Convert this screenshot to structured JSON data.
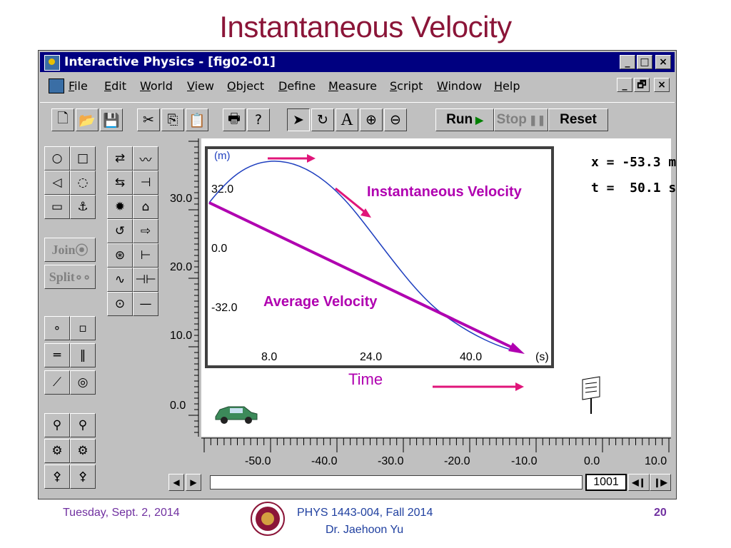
{
  "slide": {
    "title": "Instantaneous Velocity",
    "footer_date": "Tuesday, Sept. 2, 2014",
    "footer_course": "PHYS 1443-004, Fall 2014",
    "footer_instructor": "Dr. Jaehoon Yu",
    "page_number": "20",
    "title_color": "#8b1538"
  },
  "window": {
    "title": "Interactive Physics - [fig02-01]",
    "title_bar_color": "#000080",
    "controls": [
      "_",
      "□",
      "×"
    ],
    "doc_controls": [
      "_",
      "🗗",
      "×"
    ]
  },
  "menu": {
    "items": [
      {
        "label": "File",
        "u": "F",
        "rest": "ile"
      },
      {
        "label": "Edit",
        "u": "E",
        "rest": "dit"
      },
      {
        "label": "World",
        "u": "W",
        "rest": "orld"
      },
      {
        "label": "View",
        "u": "V",
        "rest": "iew"
      },
      {
        "label": "Object",
        "u": "O",
        "rest": "bject"
      },
      {
        "label": "Define",
        "u": "D",
        "rest": "efine"
      },
      {
        "label": "Measure",
        "u": "M",
        "rest": "easure"
      },
      {
        "label": "Script",
        "u": "S",
        "rest": "cript"
      },
      {
        "label": "Window",
        "u": "W",
        "rest": "indow"
      },
      {
        "label": "Help",
        "u": "H",
        "rest": "elp"
      }
    ]
  },
  "toolbar": {
    "run_label": "Run",
    "stop_label": "Stop",
    "reset_label": "Reset",
    "text_tool": "A"
  },
  "palette": {
    "join_label": "Join",
    "split_label": "Split"
  },
  "graph": {
    "y_unit": "(m)",
    "x_unit": "(s)",
    "y_ticks": [
      "32.0",
      "0.0",
      "-32.0"
    ],
    "x_ticks": [
      "8.0",
      "24.0",
      "40.0"
    ],
    "x_axis_title": "Time",
    "instantaneous_label": "Instantaneous Velocity",
    "average_label": "Average Velocity",
    "curve_color": "#1f3fbf",
    "average_color": "#b000b0",
    "arrow_color": "#e0157a"
  },
  "readouts": {
    "x": "x = -53.3 m",
    "t": "t =  50.1 s"
  },
  "rulers": {
    "left_ticks": [
      "30.0",
      "20.0",
      "10.0",
      "0.0"
    ],
    "bottom_ticks": [
      "-50.0",
      "-40.0",
      "-30.0",
      "-20.0",
      "-10.0",
      "0.0",
      "10.0"
    ]
  },
  "frame": {
    "counter": "1001"
  }
}
